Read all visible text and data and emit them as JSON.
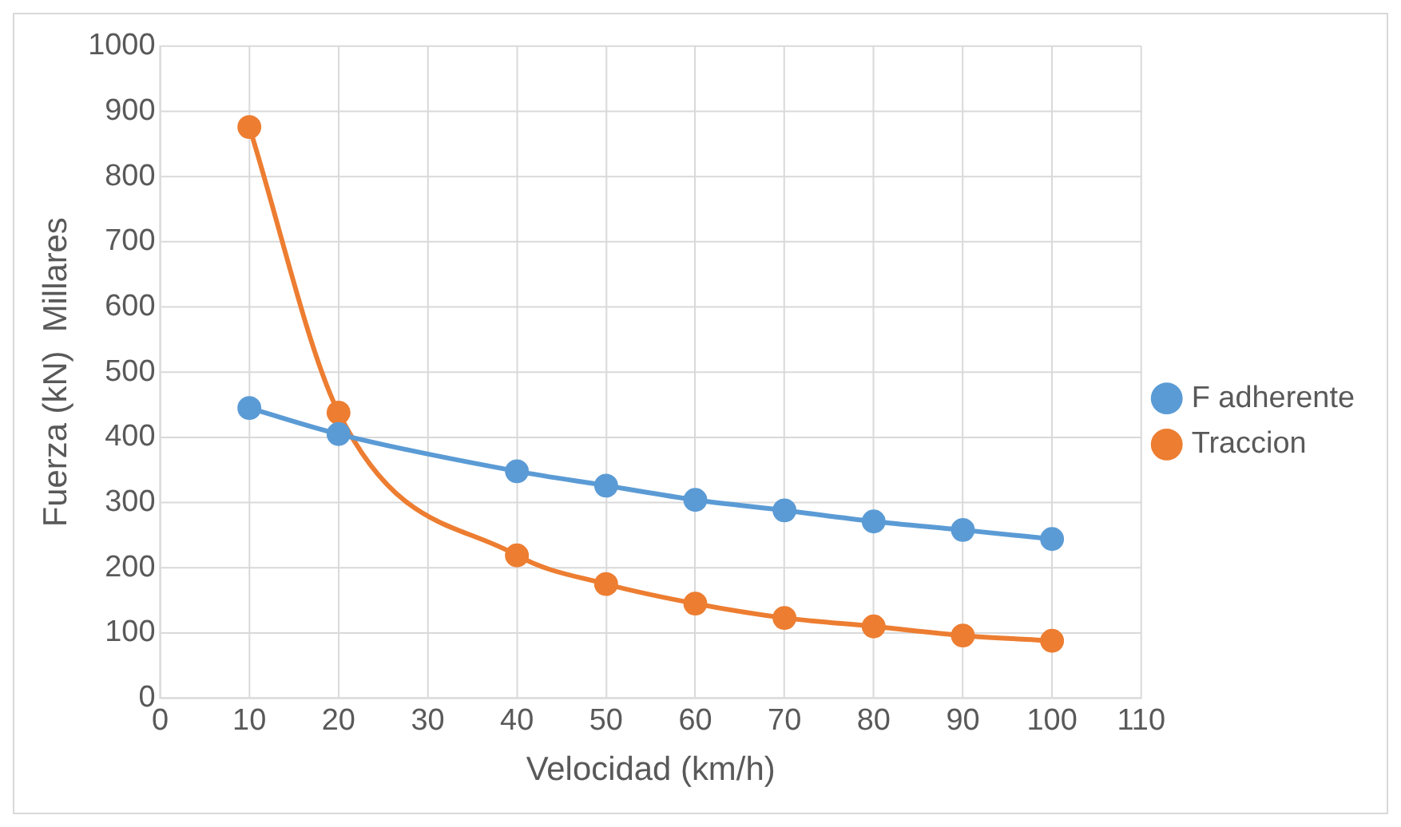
{
  "chart_data": {
    "type": "line",
    "xlabel": "Velocidad (km/h)",
    "ylabel": "Fuerza (kN)  Millares",
    "x": [
      10,
      20,
      40,
      50,
      60,
      70,
      80,
      90,
      100
    ],
    "series": [
      {
        "name": "F adherente",
        "color": "#5b9bd5",
        "values": [
          445,
          405,
          348,
          326,
          304,
          288,
          271,
          258,
          244
        ]
      },
      {
        "name": "Traccion",
        "color": "#ed7d31",
        "values": [
          876,
          438,
          219,
          175,
          145,
          123,
          110,
          96,
          88
        ]
      }
    ],
    "xlim": [
      0,
      110
    ],
    "xticks": [
      0,
      10,
      20,
      30,
      40,
      50,
      60,
      70,
      80,
      90,
      100,
      110
    ],
    "ylim": [
      0,
      1000
    ],
    "yticks": [
      0,
      100,
      200,
      300,
      400,
      500,
      600,
      700,
      800,
      900,
      1000
    ],
    "grid": true,
    "legend": "right",
    "marker": "circle",
    "line_style": "solid"
  }
}
